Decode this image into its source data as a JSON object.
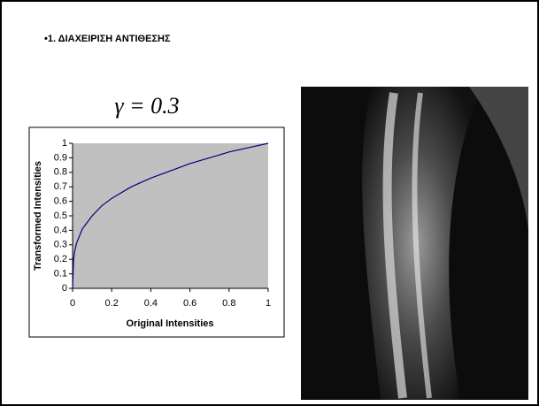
{
  "header": {
    "title": "•1. ΔΙΑΧΕΙΡΙΣΗ ΑΝΤΙΘΕΣΗΣ"
  },
  "chart_data": {
    "type": "line",
    "title": "γ = 0.3",
    "x_label": "Original Intensities",
    "y_label": "Transformed Intensities",
    "x": [
      0,
      0.005,
      0.01,
      0.02,
      0.05,
      0.1,
      0.15,
      0.2,
      0.3,
      0.4,
      0.5,
      0.6,
      0.7,
      0.8,
      0.9,
      1
    ],
    "values": [
      0,
      0.2,
      0.25,
      0.31,
      0.41,
      0.5,
      0.57,
      0.62,
      0.7,
      0.76,
      0.81,
      0.86,
      0.9,
      0.94,
      0.97,
      1
    ],
    "color": "#000080",
    "xlim": [
      0,
      1
    ],
    "ylim": [
      0,
      1
    ],
    "xticks": [
      0,
      0.2,
      0.4,
      0.6,
      0.8,
      1
    ],
    "yticks": [
      0,
      0.1,
      0.2,
      0.3,
      0.4,
      0.5,
      0.6,
      0.7,
      0.8,
      0.9,
      1
    ],
    "grid": false
  }
}
